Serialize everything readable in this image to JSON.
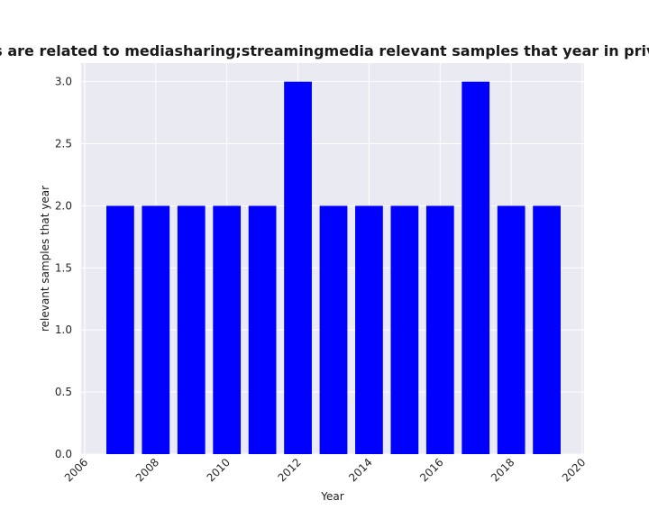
{
  "chart_data": {
    "type": "bar",
    "title": "Categories are related to mediasharing;streamingmedia relevant samples that year in privacy policies",
    "xlabel": "Year",
    "ylabel": "relevant samples that year",
    "x": [
      2007,
      2008,
      2009,
      2010,
      2011,
      2012,
      2013,
      2014,
      2015,
      2016,
      2017,
      2018,
      2019
    ],
    "values": [
      2,
      2,
      2,
      2,
      2,
      3,
      2,
      2,
      2,
      2,
      3,
      2,
      2
    ],
    "xlim": [
      2005.9,
      2020.05
    ],
    "ylim": [
      0,
      3.15
    ],
    "xticks": [
      "2006",
      "2008",
      "2010",
      "2012",
      "2014",
      "2016",
      "2018",
      "2020"
    ],
    "yticks": [
      "0.0",
      "0.5",
      "1.0",
      "1.5",
      "2.0",
      "2.5",
      "3.0"
    ],
    "bar_color": "#0000ff",
    "plot_background": "#eaeaf2",
    "grid": true
  }
}
